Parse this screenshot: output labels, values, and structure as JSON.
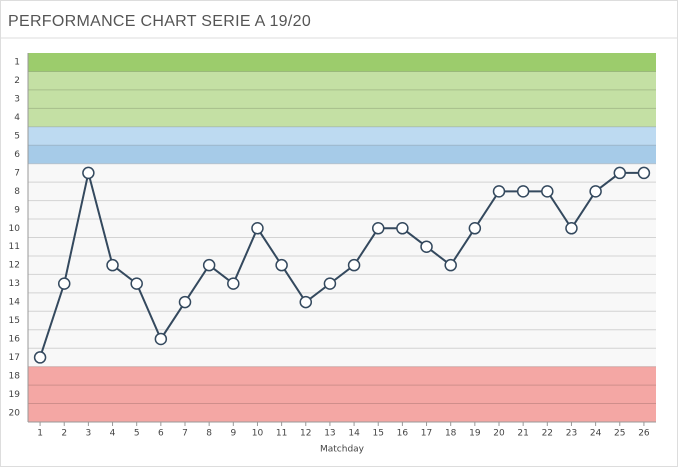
{
  "chart_data": {
    "type": "line",
    "title": "PERFORMANCE CHART SERIE A 19/20",
    "x_label": "Matchday",
    "x": [
      1,
      2,
      3,
      4,
      5,
      6,
      7,
      8,
      9,
      10,
      11,
      12,
      13,
      14,
      15,
      16,
      17,
      18,
      19,
      20,
      21,
      22,
      23,
      24,
      25,
      26
    ],
    "series": [
      {
        "color": "#34495e",
        "values": [
          17,
          13,
          7,
          12,
          13,
          16,
          14,
          12,
          13,
          10,
          12,
          14,
          13,
          12,
          10,
          10,
          11,
          12,
          10,
          8,
          8,
          8,
          10,
          8,
          7,
          7
        ]
      }
    ],
    "xlim": [
      0.5,
      26.5
    ],
    "xticks": [
      1,
      2,
      3,
      4,
      5,
      6,
      7,
      8,
      9,
      10,
      11,
      12,
      13,
      14,
      15,
      16,
      17,
      18,
      19,
      20,
      21,
      22,
      23,
      24,
      25,
      26
    ],
    "ylim": [
      0.5,
      20.5
    ],
    "yticks": [
      1,
      2,
      3,
      4,
      5,
      6,
      7,
      8,
      9,
      10,
      11,
      12,
      13,
      14,
      15,
      16,
      17,
      18,
      19,
      20
    ],
    "y_inverted": true,
    "grid": true,
    "bands": [
      {
        "from": 1,
        "to": 1,
        "color": "#9ccc6c"
      },
      {
        "from": 2,
        "to": 4,
        "color": "#c4e0a4"
      },
      {
        "from": 5,
        "to": 5,
        "color": "#bddaf1"
      },
      {
        "from": 6,
        "to": 6,
        "color": "#a6cbe8"
      },
      {
        "from": 7,
        "to": 17,
        "color": "#f8f8f8"
      },
      {
        "from": 18,
        "to": 20,
        "color": "#f4a7a4"
      }
    ]
  }
}
